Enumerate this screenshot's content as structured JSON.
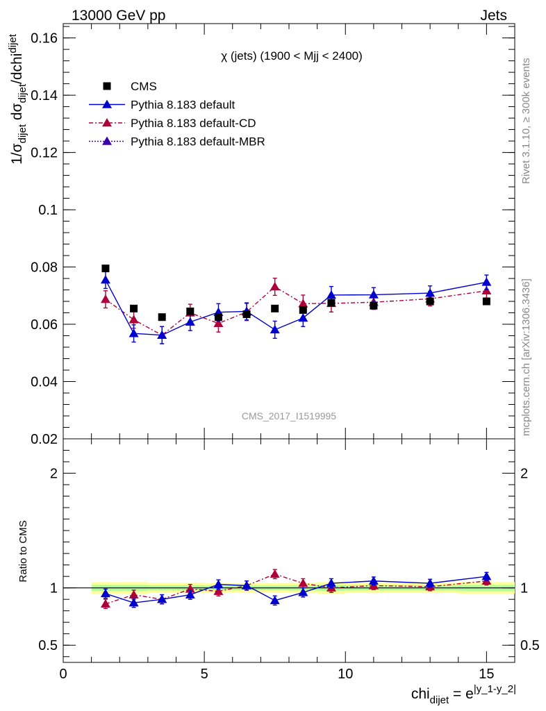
{
  "header": {
    "left": "13000 GeV pp",
    "right": "Jets"
  },
  "side_labels": {
    "rivet": "Rivet 3.1.10, ≥ 300k events",
    "mcplots": "mcplots.cern.ch [arXiv:1306.3436]"
  },
  "watermark": "CMS_2017_I1519995",
  "colors": {
    "cms": "#000000",
    "default": "#0000cc",
    "default_cd": "#b0003a",
    "default_mbr": "#3a00b0",
    "band_outer": "#ffff99",
    "band_inner": "#aaff99"
  },
  "chart_data": [
    {
      "type": "scatter",
      "title": "χ (jets) (1900 < Mjj < 2400)",
      "ylabel": "1/σ_dijet dσ_dijet/dchi_dijet",
      "xlim": [
        0,
        16
      ],
      "ylim": [
        0.02,
        0.165
      ],
      "y_ticks": [
        "0.02",
        "0.04",
        "0.06",
        "0.08",
        "0.1",
        "0.12",
        "0.14",
        "0.16"
      ],
      "legend_position": "top-left",
      "series": [
        {
          "name": "CMS",
          "marker": "square",
          "x": [
            1.5,
            2.5,
            3.5,
            4.5,
            5.5,
            6.5,
            7.5,
            8.5,
            9.5,
            11.0,
            13.0,
            15.0
          ],
          "y": [
            0.0795,
            0.0655,
            0.0625,
            0.0645,
            0.0625,
            0.0635,
            0.0655,
            0.065,
            0.0675,
            0.0665,
            0.068,
            0.068
          ]
        },
        {
          "name": "Pythia 8.183 default",
          "marker": "triangle",
          "line": "solid",
          "x": [
            1.5,
            2.5,
            3.5,
            4.5,
            5.5,
            6.5,
            7.5,
            8.5,
            9.5,
            11.0,
            13.0,
            15.0
          ],
          "y": [
            0.0755,
            0.0568,
            0.0562,
            0.0608,
            0.0642,
            0.0645,
            0.0581,
            0.0622,
            0.0702,
            0.0703,
            0.0709,
            0.0747
          ],
          "err": [
            0.003,
            0.003,
            0.003,
            0.003,
            0.003,
            0.003,
            0.003,
            0.003,
            0.003,
            0.0025,
            0.0025,
            0.0025
          ]
        },
        {
          "name": "Pythia 8.183 default-CD",
          "marker": "triangle",
          "line": "dashdot",
          "x": [
            1.5,
            2.5,
            3.5,
            4.5,
            5.5,
            6.5,
            7.5,
            8.5,
            9.5,
            11.0,
            13.0,
            15.0
          ],
          "y": [
            0.0687,
            0.0616,
            0.0562,
            0.064,
            0.0603,
            0.0643,
            0.0731,
            0.0672,
            0.0673,
            0.0677,
            0.0689,
            0.0717
          ],
          "err": [
            0.003,
            0.003,
            0.003,
            0.003,
            0.003,
            0.003,
            0.003,
            0.003,
            0.003,
            0.0025,
            0.0025,
            0.0025
          ]
        },
        {
          "name": "Pythia 8.183 default-MBR",
          "marker": "triangle",
          "line": "dotted",
          "x": [],
          "y": []
        }
      ]
    },
    {
      "type": "scatter",
      "title": "",
      "xlabel": "chi_dijet = e^|y_1-y_2|",
      "ylabel": "Ratio to CMS",
      "xlim": [
        0,
        16
      ],
      "ylim": [
        0.35,
        2.3
      ],
      "y_ticks": [
        "0.5",
        "1",
        "2"
      ],
      "x_ticks": [
        "0",
        "5",
        "10",
        "15"
      ],
      "series": [
        {
          "name": "Pythia 8.183 default",
          "x": [
            1.5,
            2.5,
            3.5,
            4.5,
            5.5,
            6.5,
            7.5,
            8.5,
            9.5,
            11.0,
            13.0,
            15.0
          ],
          "y": [
            0.95,
            0.87,
            0.9,
            0.94,
            1.03,
            1.02,
            0.89,
            0.96,
            1.04,
            1.06,
            1.04,
            1.1
          ],
          "err": [
            0.04,
            0.04,
            0.04,
            0.04,
            0.04,
            0.04,
            0.04,
            0.04,
            0.04,
            0.035,
            0.035,
            0.035
          ]
        },
        {
          "name": "Pythia 8.183 default-CD",
          "x": [
            1.5,
            2.5,
            3.5,
            4.5,
            5.5,
            6.5,
            7.5,
            8.5,
            9.5,
            11.0,
            13.0,
            15.0
          ],
          "y": [
            0.86,
            0.94,
            0.9,
            0.99,
            0.97,
            1.02,
            1.12,
            1.04,
            1.0,
            1.02,
            1.01,
            1.06
          ],
          "err": [
            0.04,
            0.04,
            0.04,
            0.04,
            0.04,
            0.04,
            0.04,
            0.04,
            0.04,
            0.035,
            0.035,
            0.035
          ]
        },
        {
          "name": "CMS uncertainty band",
          "x_edges": [
            1,
            2,
            3,
            4,
            5,
            6,
            7,
            8,
            9,
            10,
            12,
            14,
            16
          ],
          "outer": [
            0.05,
            0.05,
            0.045,
            0.045,
            0.04,
            0.04,
            0.04,
            0.045,
            0.05,
            0.045,
            0.045,
            0.05
          ],
          "inner": [
            0.025,
            0.025,
            0.022,
            0.022,
            0.02,
            0.02,
            0.02,
            0.022,
            0.025,
            0.022,
            0.022,
            0.025
          ]
        }
      ]
    }
  ]
}
